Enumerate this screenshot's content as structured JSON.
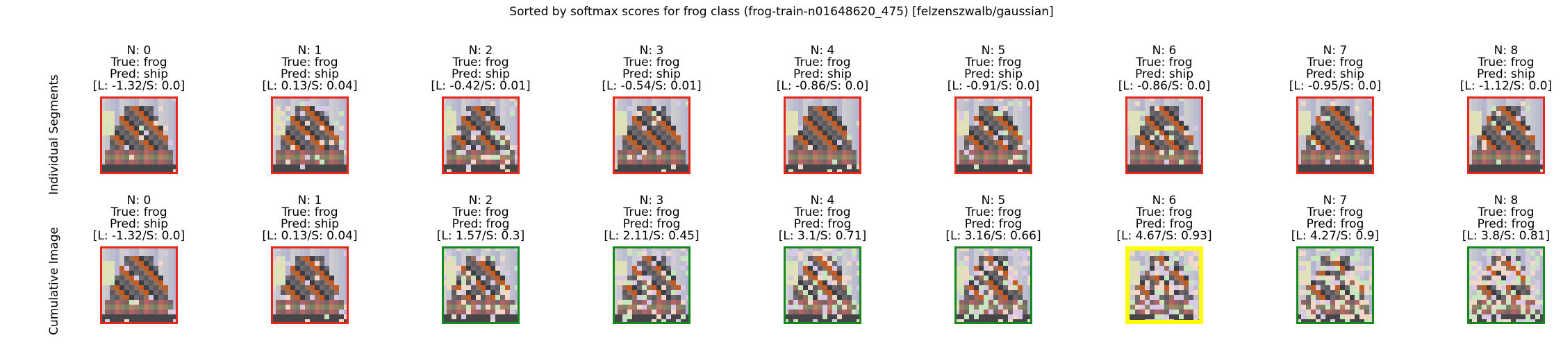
{
  "suptitle": "Sorted by softmax scores for frog class (frog-train-n01648620_475) [felzenszwalb/gaussian]",
  "colors": {
    "wrong": "#e8261c",
    "right": "#138a1e",
    "best": "#ffff00"
  },
  "rows": [
    {
      "label": "Individual Segments",
      "panels": [
        {
          "n": "N: 0",
          "true_label": "True: frog",
          "pred": "Pred: ship",
          "scores": "[L: -1.32/S: 0.0]",
          "border": "wrong",
          "noise": 0.06
        },
        {
          "n": "N: 1",
          "true_label": "True: frog",
          "pred": "Pred: ship",
          "scores": "[L: 0.13/S: 0.04]",
          "border": "wrong",
          "noise": 0.1
        },
        {
          "n": "N: 2",
          "true_label": "True: frog",
          "pred": "Pred: ship",
          "scores": "[L: -0.42/S: 0.01]",
          "border": "wrong",
          "noise": 0.14
        },
        {
          "n": "N: 3",
          "true_label": "True: frog",
          "pred": "Pred: ship",
          "scores": "[L: -0.54/S: 0.01]",
          "border": "wrong",
          "noise": 0.1
        },
        {
          "n": "N: 4",
          "true_label": "True: frog",
          "pred": "Pred: ship",
          "scores": "[L: -0.86/S: 0.0]",
          "border": "wrong",
          "noise": 0.08
        },
        {
          "n": "N: 5",
          "true_label": "True: frog",
          "pred": "Pred: ship",
          "scores": "[L: -0.91/S: 0.0]",
          "border": "wrong",
          "noise": 0.1
        },
        {
          "n": "N: 6",
          "true_label": "True: frog",
          "pred": "Pred: ship",
          "scores": "[L: -0.86/S: 0.0]",
          "border": "wrong",
          "noise": 0.08
        },
        {
          "n": "N: 7",
          "true_label": "True: frog",
          "pred": "Pred: ship",
          "scores": "[L: -0.95/S: 0.0]",
          "border": "wrong",
          "noise": 0.12
        },
        {
          "n": "N: 8",
          "true_label": "True: frog",
          "pred": "Pred: ship",
          "scores": "[L: -1.12/S: 0.0]",
          "border": "wrong",
          "noise": 0.08
        }
      ]
    },
    {
      "label": "Cumulative Image",
      "panels": [
        {
          "n": "N: 0",
          "true_label": "True: frog",
          "pred": "Pred: ship",
          "scores": "[L: -1.32/S: 0.0]",
          "border": "wrong",
          "noise": 0.06
        },
        {
          "n": "N: 1",
          "true_label": "True: frog",
          "pred": "Pred: ship",
          "scores": "[L: 0.13/S: 0.04]",
          "border": "wrong",
          "noise": 0.1
        },
        {
          "n": "N: 2",
          "true_label": "True: frog",
          "pred": "Pred: frog",
          "scores": "[L: 1.57/S: 0.3]",
          "border": "right",
          "noise": 0.18
        },
        {
          "n": "N: 3",
          "true_label": "True: frog",
          "pred": "Pred: frog",
          "scores": "[L: 2.11/S: 0.45]",
          "border": "right",
          "noise": 0.24
        },
        {
          "n": "N: 4",
          "true_label": "True: frog",
          "pred": "Pred: frog",
          "scores": "[L: 3.1/S: 0.71]",
          "border": "right",
          "noise": 0.3
        },
        {
          "n": "N: 5",
          "true_label": "True: frog",
          "pred": "Pred: frog",
          "scores": "[L: 3.16/S: 0.66]",
          "border": "right",
          "noise": 0.34
        },
        {
          "n": "N: 6",
          "true_label": "True: frog",
          "pred": "Pred: frog",
          "scores": "[L: 4.67/S: 0.93]",
          "border": "best",
          "noise": 0.4
        },
        {
          "n": "N: 7",
          "true_label": "True: frog",
          "pred": "Pred: frog",
          "scores": "[L: 4.27/S: 0.9]",
          "border": "right",
          "noise": 0.44
        },
        {
          "n": "N: 8",
          "true_label": "True: frog",
          "pred": "Pred: frog",
          "scores": "[L: 3.8/S: 0.81]",
          "border": "right",
          "noise": 0.48
        }
      ]
    }
  ]
}
